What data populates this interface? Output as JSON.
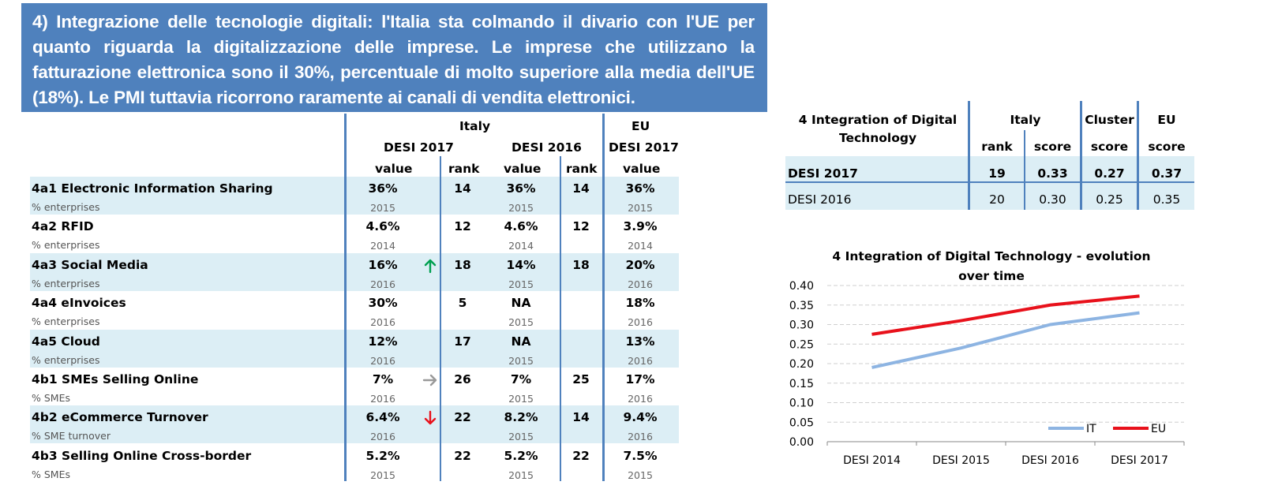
{
  "banner": {
    "text": "4) Integrazione delle tecnologie digitali: l'Italia sta colmando il divario con l'UE per quanto riguarda la digitalizzazione delle imprese. Le imprese che utilizzano la fatturazione elettronica sono il 30%, percentuale di molto superiore alla media dell'UE (18%). Le PMI tuttavia ricorrono raramente ai canali di vendita elettronici."
  },
  "main_table": {
    "header": {
      "italy": "Italy",
      "eu": "EU",
      "desi2017_it": "DESI 2017",
      "desi2016_it": "DESI 2016",
      "desi2017_eu": "DESI 2017",
      "value1": "value",
      "rank1": "rank",
      "value2": "value",
      "rank2": "rank",
      "value3": "value"
    },
    "rows": [
      {
        "label": "4a1 Electronic Information Sharing",
        "unit": "% enterprises",
        "v17": "36%",
        "y17": "2015",
        "trend": "",
        "r17": "14",
        "v16": "36%",
        "y16": "2015",
        "r16": "14",
        "eu": "36%",
        "yeu": "2015"
      },
      {
        "label": "4a2 RFID",
        "unit": "% enterprises",
        "v17": "4.6%",
        "y17": "2014",
        "trend": "",
        "r17": "12",
        "v16": "4.6%",
        "y16": "2014",
        "r16": "12",
        "eu": "3.9%",
        "yeu": "2014"
      },
      {
        "label": "4a3 Social Media",
        "unit": "% enterprises",
        "v17": "16%",
        "y17": "2016",
        "trend": "up",
        "r17": "18",
        "v16": "14%",
        "y16": "2015",
        "r16": "18",
        "eu": "20%",
        "yeu": "2016"
      },
      {
        "label": "4a4 eInvoices",
        "unit": "% enterprises",
        "v17": "30%",
        "y17": "2016",
        "trend": "",
        "r17": "5",
        "v16": "NA",
        "y16": "2015",
        "r16": "",
        "eu": "18%",
        "yeu": "2016"
      },
      {
        "label": "4a5 Cloud",
        "unit": "% enterprises",
        "v17": "12%",
        "y17": "2016",
        "trend": "",
        "r17": "17",
        "v16": "NA",
        "y16": "2015",
        "r16": "",
        "eu": "13%",
        "yeu": "2016"
      },
      {
        "label": "4b1 SMEs Selling Online",
        "unit": "% SMEs",
        "v17": "7%",
        "y17": "2016",
        "trend": "right",
        "r17": "26",
        "v16": "7%",
        "y16": "2015",
        "r16": "25",
        "eu": "17%",
        "yeu": "2016"
      },
      {
        "label": "4b2 eCommerce Turnover",
        "unit": "% SME turnover",
        "v17": "6.4%",
        "y17": "2016",
        "trend": "down",
        "r17": "22",
        "v16": "8.2%",
        "y16": "2015",
        "r16": "14",
        "eu": "9.4%",
        "yeu": "2016"
      },
      {
        "label": "4b3 Selling Online Cross-border",
        "unit": "% SMEs",
        "v17": "5.2%",
        "y17": "2015",
        "trend": "",
        "r17": "22",
        "v16": "5.2%",
        "y16": "2015",
        "r16": "22",
        "eu": "7.5%",
        "yeu": "2015"
      }
    ]
  },
  "summary_table": {
    "title_line1": "4 Integration of Digital",
    "title_line2": "Technology",
    "italy": "Italy",
    "cluster": "Cluster",
    "eu": "EU",
    "rank": "rank",
    "score": "score",
    "cluster_score": "score",
    "eu_score": "score",
    "rows": [
      {
        "label": "DESI 2017",
        "rank": "19",
        "score": "0.33",
        "cluster": "0.27",
        "eu": "0.37"
      },
      {
        "label": "DESI 2016",
        "rank": "20",
        "score": "0.30",
        "cluster": "0.25",
        "eu": "0.35"
      }
    ]
  },
  "colors": {
    "banner": "#4F81BD",
    "band": "#DCEEF5",
    "it_line": "#8DB4E2",
    "eu_line": "#E8111B",
    "arrow_up": "#00A050",
    "arrow_right": "#999999",
    "arrow_down": "#E8111B"
  },
  "chart_data": {
    "type": "line",
    "title": "4 Integration of Digital Technology - evolution over time",
    "title_line1": "4 Integration of Digital Technology - evolution",
    "title_line2": "over time",
    "categories": [
      "DESI 2014",
      "DESI 2015",
      "DESI 2016",
      "DESI 2017"
    ],
    "series": [
      {
        "name": "IT",
        "values": [
          0.19,
          0.24,
          0.3,
          0.33
        ]
      },
      {
        "name": "EU",
        "values": [
          0.275,
          0.31,
          0.35,
          0.373
        ]
      }
    ],
    "yticks": [
      "0.00",
      "0.05",
      "0.10",
      "0.15",
      "0.20",
      "0.25",
      "0.30",
      "0.35",
      "0.40"
    ],
    "ylim": [
      0,
      0.4
    ],
    "grid": true,
    "legend": "bottom-right"
  }
}
